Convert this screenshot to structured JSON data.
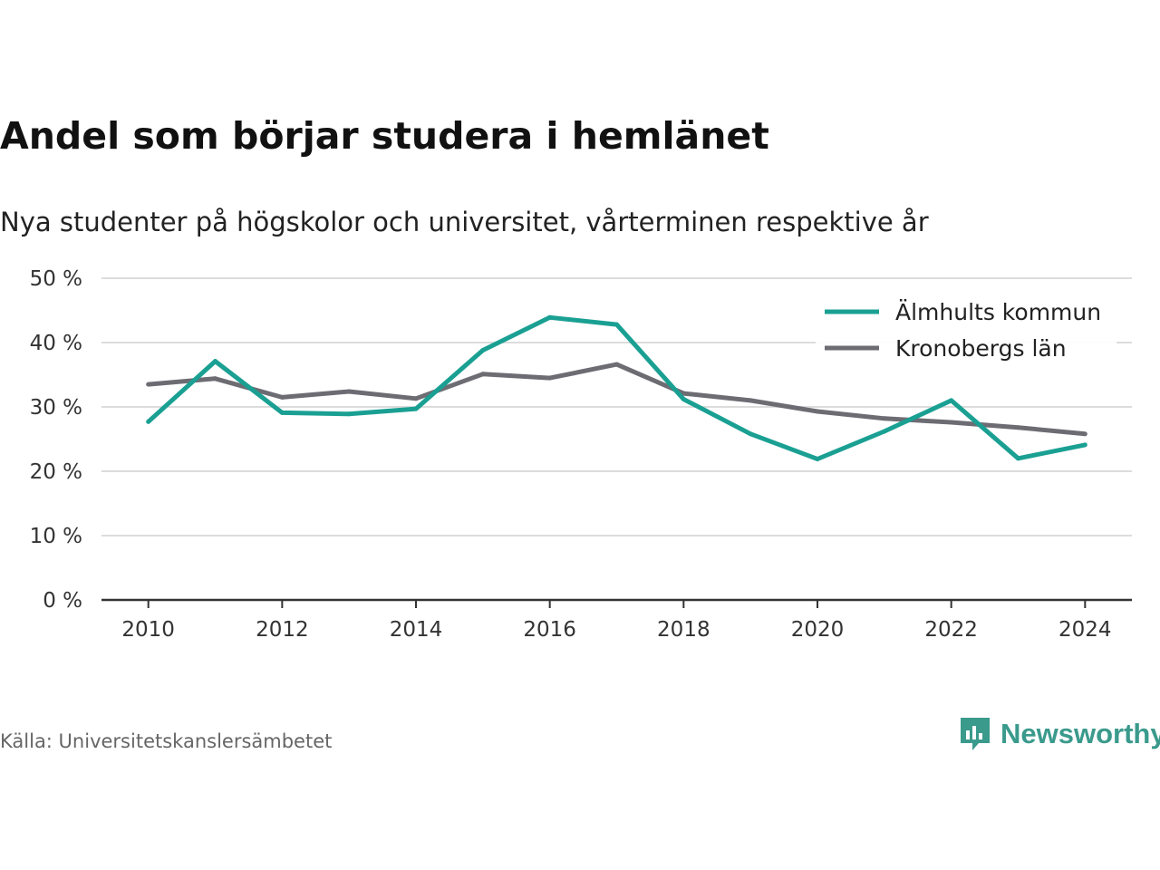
{
  "chart_data": {
    "type": "line",
    "title": "Andel som börjar studera i hemlänet",
    "subtitle": "Nya studenter på högskolor och universitet, vårterminen respektive år",
    "x": [
      2010,
      2011,
      2012,
      2013,
      2014,
      2015,
      2016,
      2017,
      2018,
      2019,
      2020,
      2021,
      2022,
      2023,
      2024
    ],
    "x_ticks": [
      2010,
      2012,
      2014,
      2016,
      2018,
      2020,
      2022,
      2024
    ],
    "x_tick_labels": [
      "2010",
      "2012",
      "2014",
      "2016",
      "2018",
      "2020",
      "2022",
      "2024"
    ],
    "y_ticks": [
      0,
      10,
      20,
      30,
      40,
      50
    ],
    "y_tick_labels": [
      "0 %",
      "10 %",
      "20 %",
      "30 %",
      "40 %",
      "50 %"
    ],
    "xlim": [
      2009.3,
      2024.7
    ],
    "ylim": [
      0,
      50
    ],
    "grid": true,
    "legend_position": "top-right",
    "series": [
      {
        "name": "Älmhults kommun",
        "color": "#1aa093",
        "values": [
          27.7,
          37.1,
          29.1,
          28.9,
          29.7,
          38.8,
          43.9,
          42.8,
          31.2,
          25.8,
          21.9,
          26.2,
          31.0,
          22.0,
          24.1
        ]
      },
      {
        "name": "Kronobergs län",
        "color": "#6d6c73",
        "values": [
          33.5,
          34.4,
          31.5,
          32.4,
          31.3,
          35.1,
          34.5,
          36.6,
          32.1,
          31.0,
          29.3,
          28.2,
          27.6,
          26.8,
          25.8
        ]
      }
    ]
  },
  "source": "Källa: Universitetskanslersämbetet",
  "brand": {
    "name": "Newsworthy",
    "icon": "newsworthy-logo-icon",
    "color": "#3a9a8c"
  }
}
